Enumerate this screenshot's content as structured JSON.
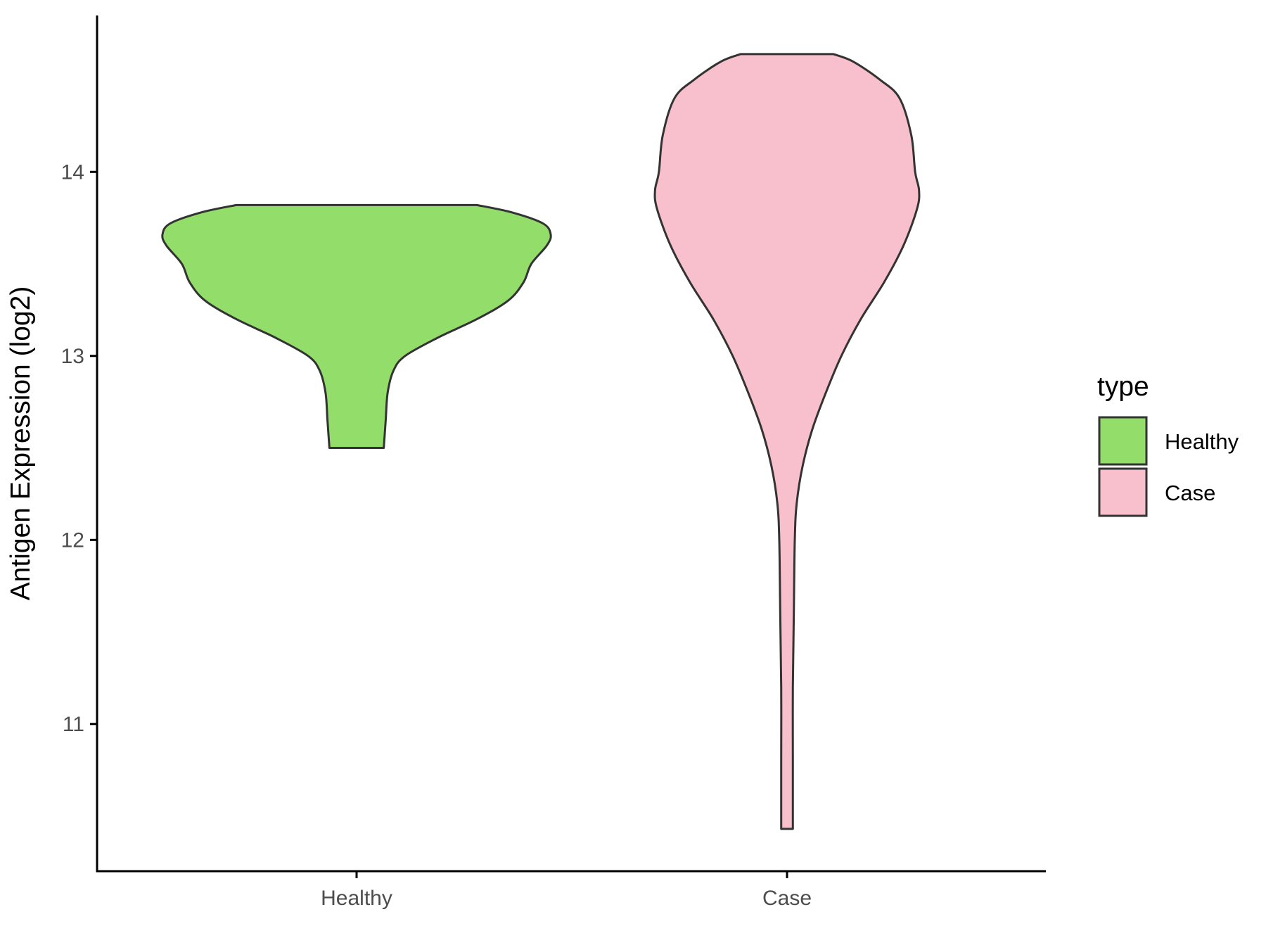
{
  "chart_data": {
    "type": "violin",
    "ylabel": "Antigen Expression (log2)",
    "xlabel": "",
    "ylim": [
      10.2,
      14.85
    ],
    "yticks": [
      11,
      12,
      13,
      14
    ],
    "categories": [
      "Healthy",
      "Case"
    ],
    "grid": false,
    "legend": {
      "title": "type",
      "placement": "right",
      "entries": [
        {
          "label": "Healthy",
          "color": "#93dd6a"
        },
        {
          "label": "Case",
          "color": "#f8c0cc"
        }
      ]
    },
    "series": [
      {
        "category": "Healthy",
        "color": "#93dd6a",
        "y_min": 12.5,
        "y_max": 13.82,
        "density_profile": [
          [
            12.5,
            0.14
          ],
          [
            12.65,
            0.15
          ],
          [
            12.8,
            0.16
          ],
          [
            12.92,
            0.19
          ],
          [
            13.0,
            0.25
          ],
          [
            13.1,
            0.42
          ],
          [
            13.2,
            0.62
          ],
          [
            13.3,
            0.78
          ],
          [
            13.4,
            0.86
          ],
          [
            13.5,
            0.9
          ],
          [
            13.6,
            0.98
          ],
          [
            13.66,
            1.0
          ],
          [
            13.72,
            0.96
          ],
          [
            13.78,
            0.8
          ],
          [
            13.82,
            0.62
          ]
        ]
      },
      {
        "category": "Case",
        "color": "#f8c0cc",
        "y_min": 10.43,
        "y_max": 14.64,
        "density_profile": [
          [
            10.43,
            0.03
          ],
          [
            10.8,
            0.03
          ],
          [
            11.2,
            0.03
          ],
          [
            11.6,
            0.035
          ],
          [
            12.0,
            0.04
          ],
          [
            12.2,
            0.05
          ],
          [
            12.4,
            0.08
          ],
          [
            12.6,
            0.13
          ],
          [
            12.8,
            0.2
          ],
          [
            13.0,
            0.28
          ],
          [
            13.2,
            0.38
          ],
          [
            13.4,
            0.5
          ],
          [
            13.6,
            0.6
          ],
          [
            13.8,
            0.67
          ],
          [
            13.9,
            0.68
          ],
          [
            14.0,
            0.66
          ],
          [
            14.2,
            0.64
          ],
          [
            14.4,
            0.58
          ],
          [
            14.5,
            0.48
          ],
          [
            14.6,
            0.34
          ],
          [
            14.64,
            0.24
          ]
        ]
      }
    ]
  }
}
